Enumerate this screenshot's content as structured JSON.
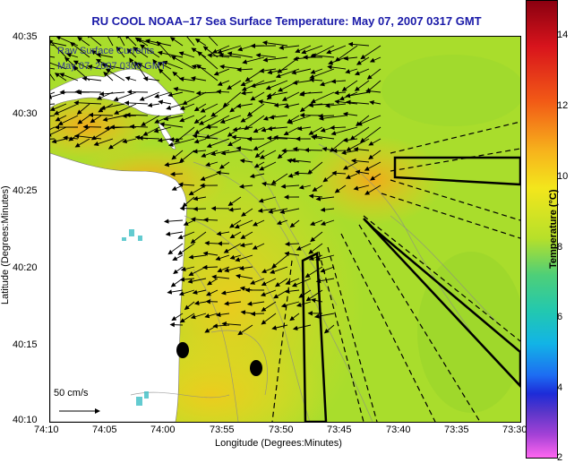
{
  "title": "RU COOL  NOAA–17  Sea Surface Temperature:  May 07, 2007 0317 GMT",
  "overlay_text": [
    "Raw Surface Currents",
    "May 07, 2007 0300 GMT"
  ],
  "axes": {
    "xlabel": "Longitude (Degrees:Minutes)",
    "ylabel": "Latitude (Degrees:Minutes)",
    "x_ticks": [
      "74:10",
      "74:05",
      "74:00",
      "73:55",
      "73:50",
      "73:45",
      "73:40",
      "73:35",
      "73:30"
    ],
    "y_ticks": [
      "40:35",
      "40:30",
      "40:25",
      "40:20",
      "40:15",
      "40:10"
    ]
  },
  "colorbar": {
    "title": "Temperature (°C)",
    "ticks": [
      "14",
      "12",
      "10",
      "8",
      "6",
      "4",
      "2"
    ],
    "range": [
      2,
      15
    ]
  },
  "scale_arrow": {
    "label": "50 cm/s"
  },
  "colors": {
    "sea": "#a9dd2c",
    "warm": "#f3b21c",
    "land": "#ffffff",
    "title": "#1a1aa8"
  }
}
